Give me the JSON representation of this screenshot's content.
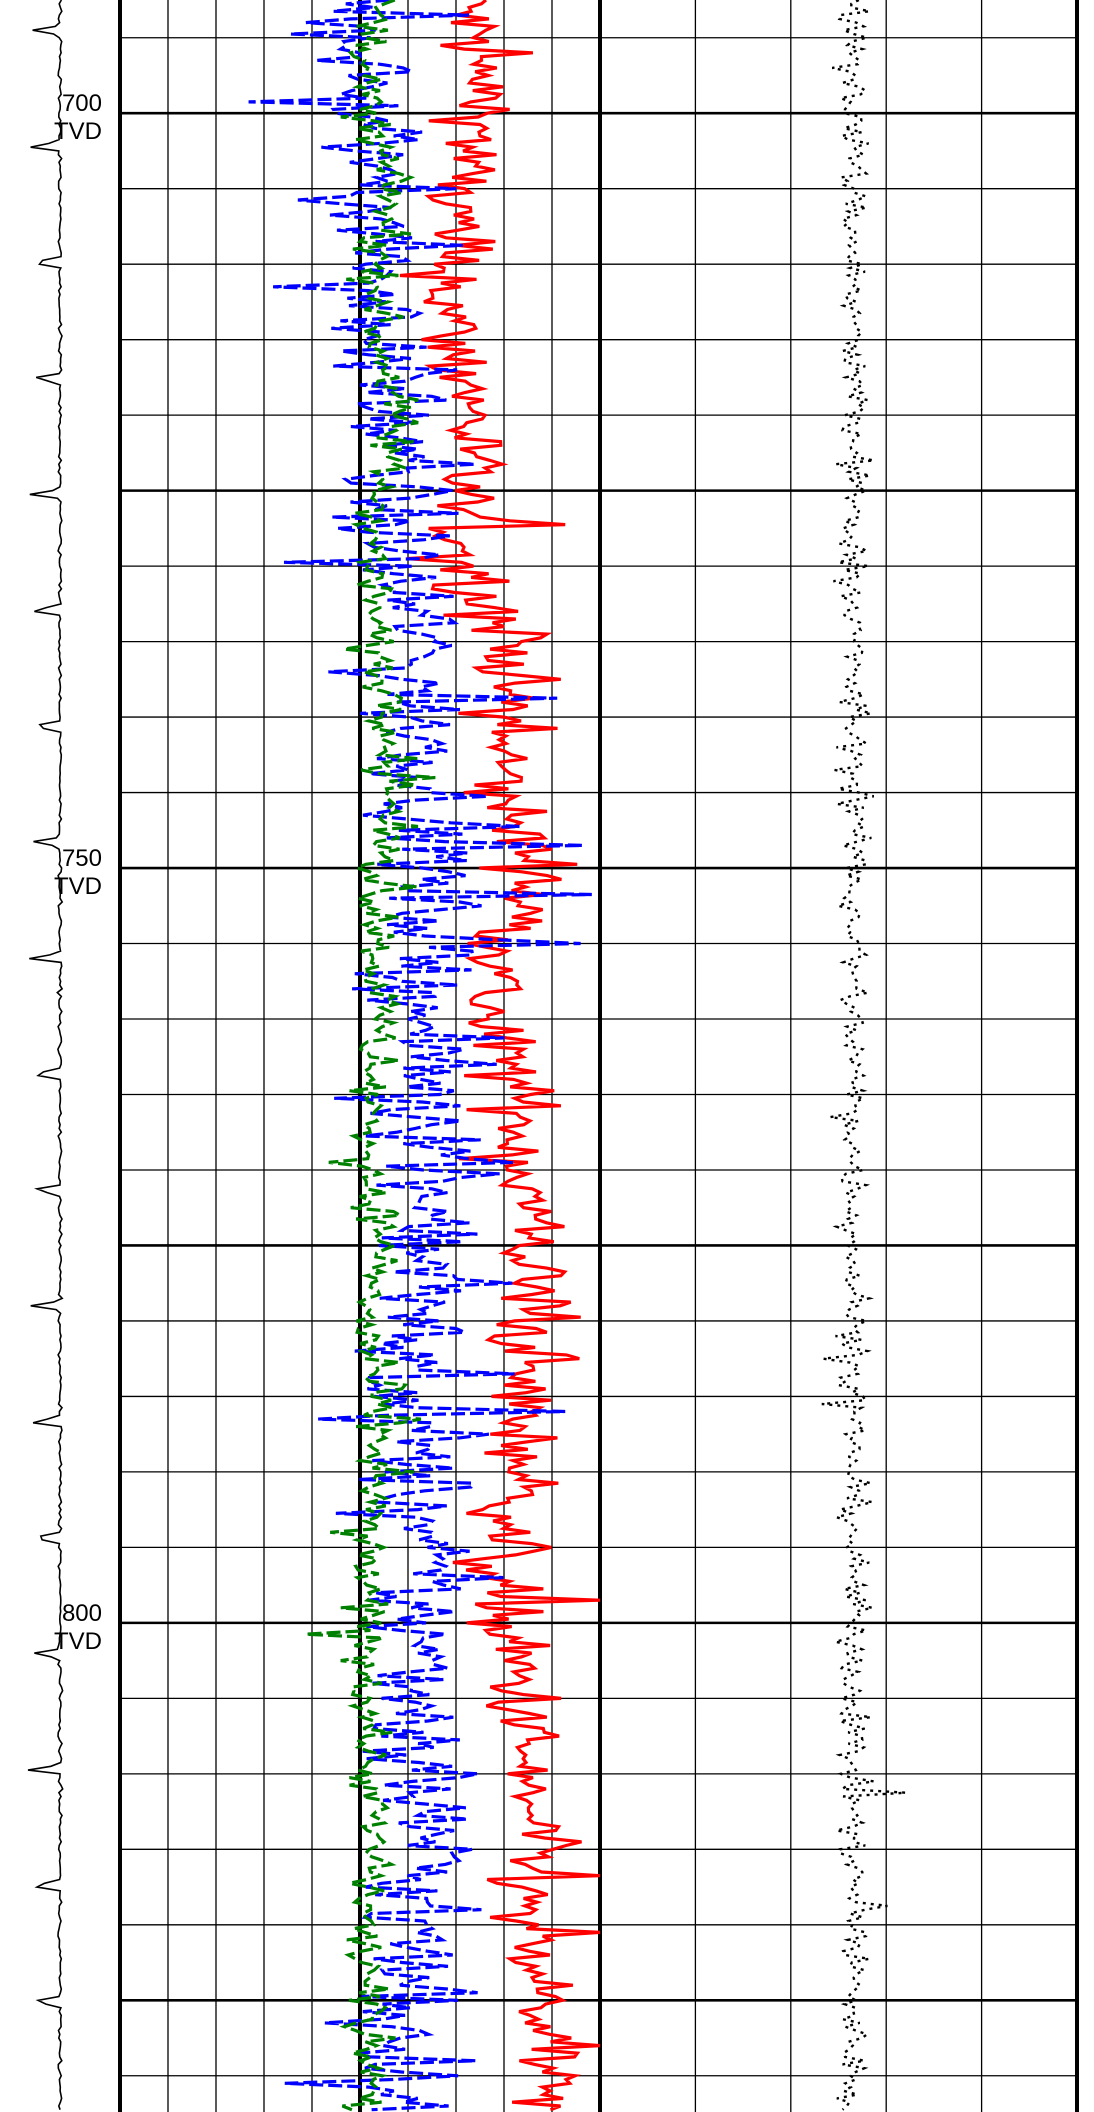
{
  "chart_data": {
    "type": "line",
    "title": "",
    "xlabel": "",
    "ylabel": "",
    "depth_axis": {
      "ylim": [
        692.5,
        832.4
      ],
      "major_step": 25,
      "minor_step": 5,
      "labels": [
        {
          "depth": 700,
          "value": "700",
          "unit": "TVD"
        },
        {
          "depth": 750,
          "value": "750",
          "unit": "TVD"
        },
        {
          "depth": 800,
          "value": "800",
          "unit": "TVD"
        }
      ]
    },
    "tracks": [
      {
        "minor_divisions": 10,
        "major_every": 5
      },
      {
        "minor_divisions": 5,
        "major_every": 5
      }
    ],
    "series": [
      {
        "track": 0,
        "style": "solid",
        "color": "#ff0000",
        "xlim": [
          0,
          10
        ],
        "depth": [
          692.5,
          700,
          705,
          710,
          715,
          720,
          725,
          730,
          735,
          740,
          745,
          750,
          755,
          760,
          765,
          770,
          775,
          780,
          785,
          790,
          795,
          800,
          805,
          810,
          815,
          820,
          825,
          830,
          832.4
        ],
        "values": [
          7.2,
          7.6,
          7.0,
          6.8,
          6.9,
          7.4,
          7.1,
          7.2,
          8.3,
          8.0,
          7.9,
          8.7,
          8.1,
          7.6,
          8.3,
          8.4,
          8.6,
          8.5,
          8.3,
          8.4,
          8.0,
          7.9,
          8.4,
          8.4,
          8.6,
          8.3,
          8.8,
          8.9,
          8.5
        ],
        "noise": 0.42
      },
      {
        "track": 0,
        "style": "dashed",
        "color": "#0000ff",
        "xlim": [
          0,
          10
        ],
        "depth": [
          692.5,
          700,
          705,
          710,
          715,
          720,
          725,
          730,
          735,
          740,
          745,
          750,
          755,
          760,
          765,
          770,
          775,
          780,
          785,
          790,
          795,
          800,
          805,
          810,
          815,
          820,
          825,
          830,
          832.4
        ],
        "values": [
          5.2,
          5.0,
          5.5,
          5.4,
          5.5,
          5.7,
          5.6,
          5.7,
          6.3,
          6.1,
          6.6,
          6.4,
          6.6,
          6.2,
          6.5,
          6.6,
          6.5,
          6.1,
          6.0,
          6.2,
          6.2,
          6.2,
          6.3,
          6.3,
          6.5,
          6.0,
          6.0,
          6.1,
          6.0
        ],
        "noise": 0.62
      },
      {
        "track": 0,
        "style": "dashed",
        "color": "#008000",
        "xlim": [
          0,
          10
        ],
        "depth": [
          692.5,
          700,
          705,
          710,
          715,
          720,
          725,
          730,
          735,
          740,
          745,
          750,
          755,
          760,
          765,
          770,
          775,
          780,
          785,
          790,
          795,
          800,
          805,
          810,
          815,
          820,
          825,
          830,
          832.4
        ],
        "values": [
          5.3,
          5.1,
          5.7,
          5.3,
          5.4,
          5.8,
          5.4,
          5.3,
          5.3,
          5.7,
          5.7,
          5.4,
          5.4,
          5.4,
          5.2,
          5.2,
          5.5,
          5.1,
          5.3,
          5.3,
          5.1,
          5.1,
          5.2,
          5.2,
          5.3,
          5.1,
          5.1,
          5.3,
          5.0
        ],
        "noise": 0.22
      },
      {
        "track": 1,
        "style": "dotted",
        "color": "#000000",
        "xlim": [
          0,
          5
        ],
        "depth": [
          692.5,
          832.4
        ],
        "values": [
          2.66,
          2.66
        ],
        "noise": 0.08
      },
      {
        "track": "depth",
        "style": "spiky",
        "color": "#000000",
        "depth": [
          692.5,
          832.4
        ],
        "values": [
          1,
          1
        ],
        "noise": 0.1
      }
    ]
  }
}
